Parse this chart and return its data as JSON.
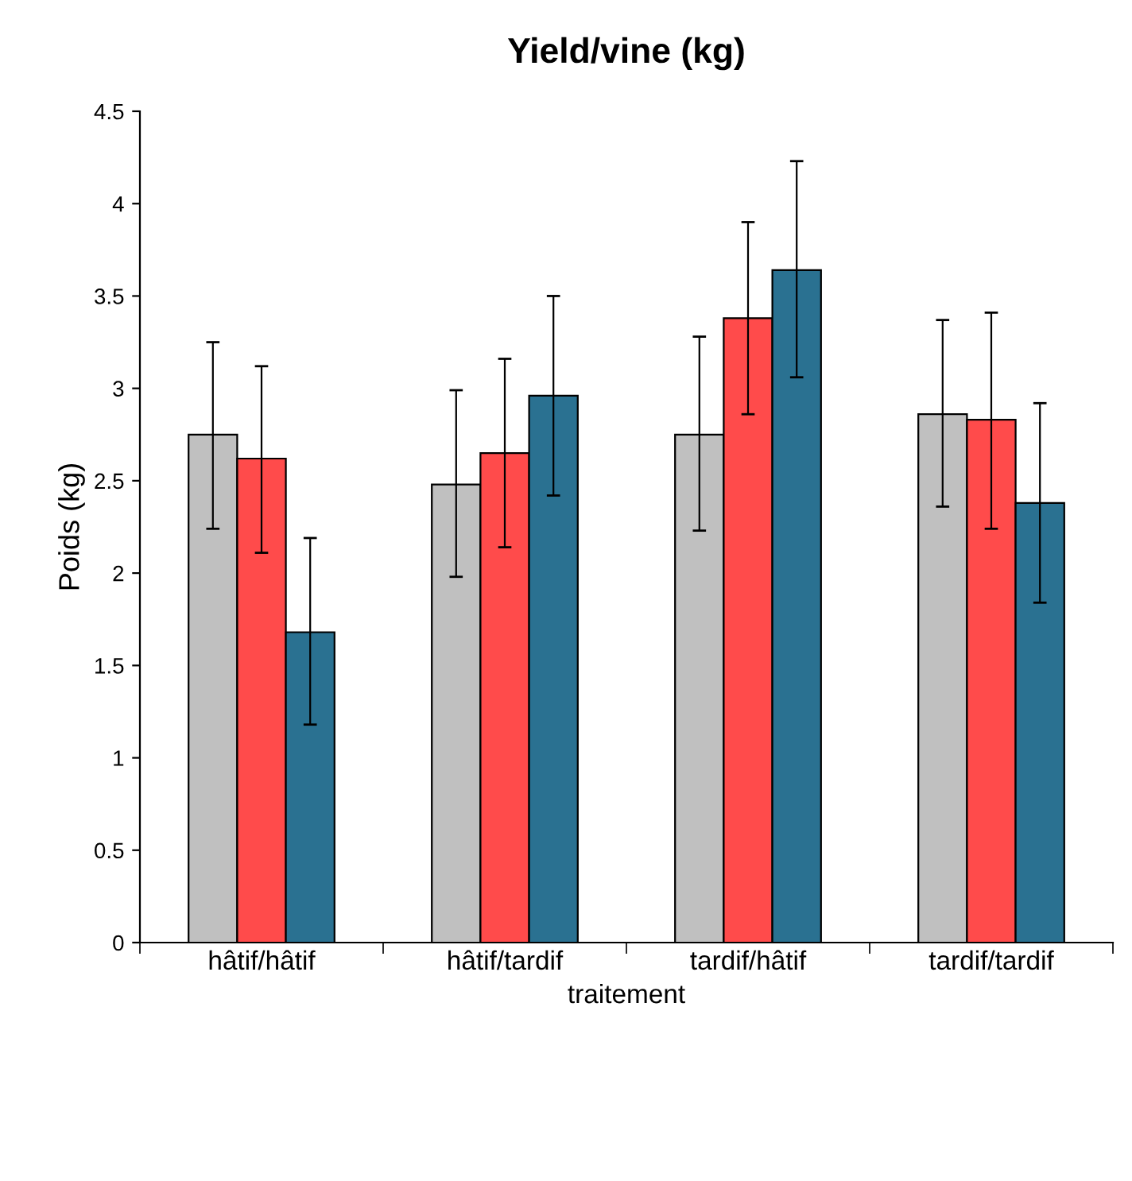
{
  "chart_data": {
    "type": "bar",
    "title": "Yield/vine (kg)",
    "xlabel": "traitement",
    "ylabel": "Poids (kg)",
    "categories": [
      "hâtif/hâtif",
      "hâtif/tardif",
      "tardif/hâtif",
      "tardif/tardif"
    ],
    "series": [
      {
        "color": "#c0c0c0",
        "values": [
          2.75,
          2.48,
          2.75,
          2.86
        ],
        "errors": [
          [
            2.24,
            3.25
          ],
          [
            1.98,
            2.99
          ],
          [
            2.23,
            3.28
          ],
          [
            2.36,
            3.37
          ]
        ]
      },
      {
        "color": "#ff4b4b",
        "values": [
          2.62,
          2.65,
          3.38,
          2.83
        ],
        "errors": [
          [
            2.11,
            3.12
          ],
          [
            2.14,
            3.16
          ],
          [
            2.86,
            3.9
          ],
          [
            2.24,
            3.41
          ]
        ]
      },
      {
        "color": "#2a7191",
        "values": [
          1.68,
          2.96,
          3.64,
          2.38
        ],
        "errors": [
          [
            1.18,
            2.19
          ],
          [
            2.42,
            3.5
          ],
          [
            3.06,
            4.23
          ],
          [
            1.84,
            2.92
          ]
        ]
      }
    ],
    "ylim": [
      0,
      4.5
    ],
    "yticks": [
      0,
      0.5,
      1,
      1.5,
      2,
      2.5,
      3,
      3.5,
      4,
      4.5
    ],
    "grid": false
  }
}
